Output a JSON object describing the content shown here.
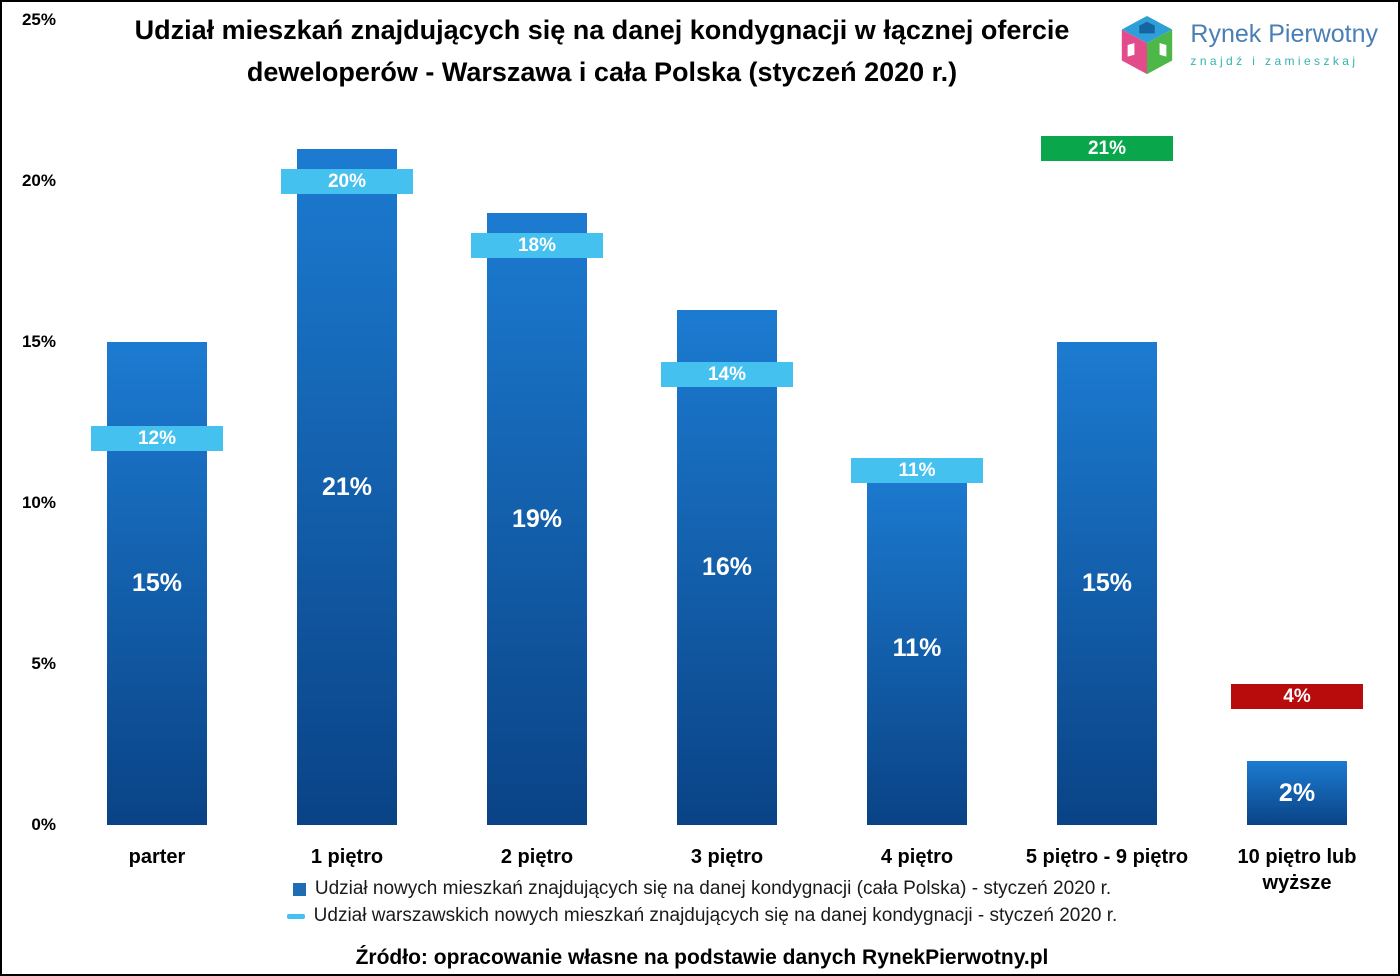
{
  "title": {
    "line1": "Udział mieszkań znajdujących się na danej kondygnacji w łącznej ofercie",
    "line2": "deweloperów - Warszawa i cała Polska (styczeń 2020 r.)"
  },
  "logo": {
    "name": "Rynek Pierwotny",
    "tagline": "znajdź i zamieszkaj"
  },
  "chart_data": {
    "type": "bar",
    "title": "Udział mieszkań znajdujących się na danej kondygnacji w łącznej ofercie deweloperów - Warszawa i cała Polska (styczeń 2020 r.)",
    "categories": [
      "parter",
      "1 piętro",
      "2 piętro",
      "3 piętro",
      "4 piętro",
      "5 piętro - 9 piętro",
      "10 piętro lub wyższe"
    ],
    "series": [
      {
        "name": "Udział nowych mieszkań znajdujących się na danej kondygnacji (cała Polska) - styczeń 2020 r.",
        "style": "bar",
        "values": [
          15,
          21,
          19,
          16,
          11,
          15,
          2
        ],
        "labels": [
          "15%",
          "21%",
          "19%",
          "16%",
          "11%",
          "15%",
          "2%"
        ],
        "color_top": "#1c7bd1",
        "color_bottom": "#0a4386"
      },
      {
        "name": "Udział warszawskich nowych mieszkań znajdujących się na danej kondygnacji - styczeń 2020 r.",
        "style": "marker",
        "values": [
          12,
          20,
          18,
          14,
          11,
          21,
          4
        ],
        "labels": [
          "12%",
          "20%",
          "18%",
          "14%",
          "11%",
          "21%",
          "4%"
        ],
        "marker_colors": [
          "#45c1f0",
          "#45c1f0",
          "#45c1f0",
          "#45c1f0",
          "#45c1f0",
          "#0aa64b",
          "#b80b0b"
        ]
      }
    ],
    "xlabel": "",
    "ylabel": "",
    "ylim": [
      0,
      25
    ],
    "yticks": [
      "0%",
      "5%",
      "10%",
      "15%",
      "20%",
      "25%"
    ],
    "grid": false,
    "legend_position": "bottom"
  },
  "footer": "Źródło: opracowanie własne na podstawie danych RynekPierwotny.pl"
}
